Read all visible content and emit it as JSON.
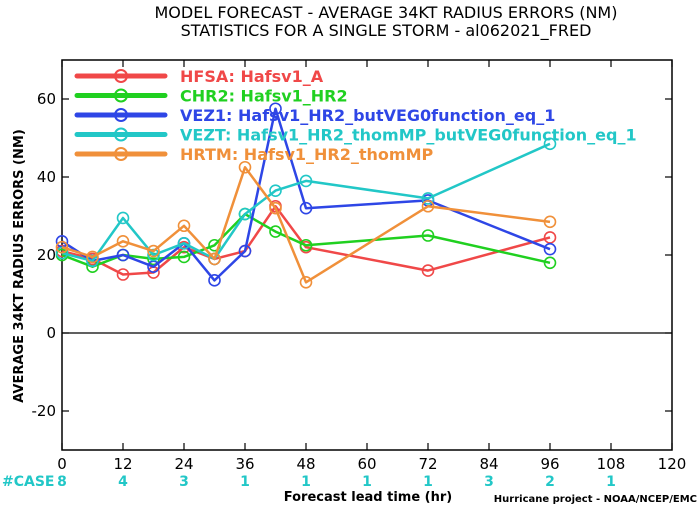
{
  "chart_data": {
    "type": "line",
    "title": "MODEL FORECAST - AVERAGE 34KT RADIUS ERRORS (NM)",
    "subtitle": "STATISTICS FOR A SINGLE STORM - al062021_FRED",
    "xlabel": "Forecast lead time (hr)",
    "ylabel": "AVERAGE 34KT RADIUS ERRORS (NM)",
    "xlim": [
      0,
      120
    ],
    "ylim": [
      -30,
      70
    ],
    "xticks": [
      0,
      12,
      24,
      36,
      48,
      60,
      72,
      84,
      96,
      108,
      120
    ],
    "yticks": [
      -20,
      0,
      20,
      40,
      60
    ],
    "grid": false,
    "zero_line": true,
    "legend_position": "top-left",
    "case_label": "#CASE",
    "case_counts": [
      {
        "x": 0,
        "n": "8"
      },
      {
        "x": 12,
        "n": "4"
      },
      {
        "x": 24,
        "n": "3"
      },
      {
        "x": 36,
        "n": "1"
      },
      {
        "x": 48,
        "n": "1"
      },
      {
        "x": 60,
        "n": "1"
      },
      {
        "x": 72,
        "n": "1"
      },
      {
        "x": 84,
        "n": "3"
      },
      {
        "x": 96,
        "n": "2"
      },
      {
        "x": 108,
        "n": "1"
      }
    ],
    "credit": "Hurricane project - NOAA/NCEP/EMC",
    "series": [
      {
        "name": "HFSA",
        "desc": "Hafsv1_A",
        "color": "#f04848",
        "x": [
          0,
          6,
          12,
          18,
          24,
          30,
          36,
          42,
          48,
          72,
          96
        ],
        "y": [
          21,
          19,
          15,
          15.5,
          22,
          19,
          21,
          32.5,
          22,
          16,
          24.5
        ]
      },
      {
        "name": "CHR2",
        "desc": "Hafsv1_HR2",
        "color": "#20d020",
        "x": [
          0,
          6,
          12,
          18,
          24,
          30,
          36,
          42,
          48,
          72,
          96
        ],
        "y": [
          20,
          17,
          20,
          19,
          19.5,
          22.5,
          30.5,
          26,
          22.5,
          25,
          18
        ]
      },
      {
        "name": "VEZ1",
        "desc": "Hafsv1_HR2_butVEG0function_eq_1",
        "color": "#2e46e6",
        "x": [
          0,
          6,
          12,
          18,
          24,
          30,
          36,
          42,
          48,
          72,
          96
        ],
        "y": [
          23.5,
          18.5,
          20,
          17,
          23,
          13.5,
          21,
          57.5,
          32,
          34,
          21.5
        ]
      },
      {
        "name": "VEZT",
        "desc": "Hafsv1_HR2_thomMP_butVEG0function_eq_1",
        "color": "#22c7c7",
        "x": [
          0,
          6,
          12,
          18,
          24,
          30,
          36,
          42,
          48,
          72,
          96
        ],
        "y": [
          20.5,
          18.5,
          29.5,
          20,
          23,
          19,
          30.5,
          36.5,
          39,
          34.5,
          48.5
        ]
      },
      {
        "name": "HRTM",
        "desc": "Hafsv1_HR2_thomMP",
        "color": "#f0903a",
        "x": [
          0,
          6,
          12,
          18,
          24,
          30,
          36,
          42,
          48,
          72,
          96
        ],
        "y": [
          22,
          19.5,
          23.5,
          21,
          27.5,
          19,
          42.5,
          32,
          13,
          32.5,
          28.5
        ]
      }
    ]
  }
}
